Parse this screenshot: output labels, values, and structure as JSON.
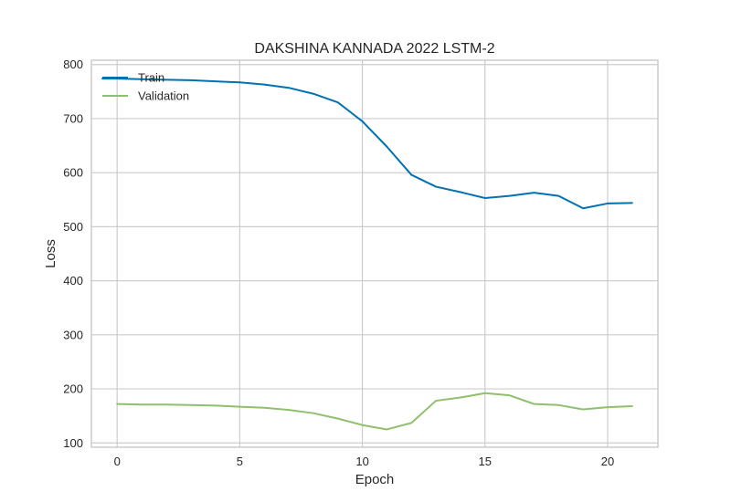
{
  "chart_data": {
    "type": "line",
    "title": "DAKSHINA KANNADA 2022 LSTM-2",
    "xlabel": "Epoch",
    "ylabel": "Loss",
    "xlim": [
      -1.05,
      22.05
    ],
    "ylim": [
      92,
      808
    ],
    "xticks": [
      0,
      5,
      10,
      15,
      20
    ],
    "yticks": [
      100,
      200,
      300,
      400,
      500,
      600,
      700,
      800
    ],
    "grid": true,
    "legend_position": "top-left",
    "series": [
      {
        "name": "Train",
        "color": "#0072b2",
        "x": [
          -0.6,
          0,
          1,
          2,
          3,
          4,
          5,
          6,
          7,
          8,
          9,
          10,
          11,
          12,
          13,
          14,
          15,
          16,
          17,
          18,
          19,
          20,
          21
        ],
        "y": [
          774,
          774,
          773,
          772,
          771,
          769,
          767,
          763,
          757,
          746,
          730,
          695,
          648,
          596,
          574,
          564,
          553,
          557,
          563,
          557,
          534,
          543,
          544
        ]
      },
      {
        "name": "Validation",
        "color": "#8fc06d",
        "x": [
          0,
          1,
          2,
          3,
          4,
          5,
          6,
          7,
          8,
          9,
          10,
          11,
          12,
          13,
          14,
          15,
          16,
          17,
          18,
          19,
          20,
          21
        ],
        "y": [
          172,
          171,
          171,
          170,
          169,
          167,
          165,
          161,
          155,
          145,
          133,
          125,
          137,
          178,
          184,
          192,
          188,
          172,
          170,
          162,
          166,
          168
        ]
      }
    ]
  }
}
